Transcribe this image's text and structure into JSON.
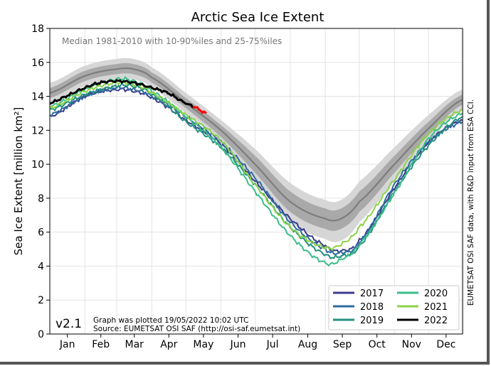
{
  "chart_data": {
    "type": "line",
    "title": "Arctic Sea Ice Extent",
    "ylabel": "Sea Ice Extent [million km²]",
    "xlabel": "",
    "ylim": [
      0,
      18
    ],
    "yticks": [
      0,
      2,
      4,
      6,
      8,
      10,
      12,
      14,
      16,
      18
    ],
    "months": [
      "Jan",
      "Feb",
      "Mar",
      "Apr",
      "May",
      "Jun",
      "Jul",
      "Aug",
      "Sep",
      "Oct",
      "Nov",
      "Dec"
    ],
    "grid": true,
    "legend_position": "bottom-right",
    "median_label": "Median 1981-2010 with 10-90%iles and 25-75%iles",
    "version": "v2.1",
    "plotted_note": "Graph was plotted 19/05/2022 10:02 UTC",
    "source_note": "Source: EUMETSAT OSI SAF (http://osi-saf.eumetsat.int)",
    "side_note": "EUMETSAT OSI SAF data, with R&D input from ESA CCI.",
    "median": {
      "days": [
        1,
        32,
        60,
        75,
        91,
        121,
        152,
        182,
        213,
        244,
        258,
        274,
        305,
        335,
        365
      ],
      "median": [
        14.2,
        15.2,
        15.6,
        15.6,
        15.1,
        13.6,
        12.0,
        10.0,
        7.8,
        6.8,
        6.8,
        7.8,
        10.0,
        12.1,
        13.8
      ],
      "p25": [
        13.9,
        14.9,
        15.3,
        15.3,
        14.8,
        13.3,
        11.6,
        9.5,
        7.2,
        6.2,
        6.2,
        7.2,
        9.5,
        11.7,
        13.5
      ],
      "p75": [
        14.5,
        15.5,
        15.9,
        15.9,
        15.4,
        13.9,
        12.3,
        10.5,
        8.4,
        7.4,
        7.4,
        8.4,
        10.5,
        12.5,
        14.1
      ],
      "p10": [
        13.6,
        14.6,
        15.0,
        15.0,
        14.5,
        13.0,
        11.3,
        9.0,
        6.6,
        5.6,
        5.5,
        6.6,
        9.0,
        11.3,
        13.2
      ],
      "p90": [
        14.8,
        15.8,
        16.2,
        16.2,
        15.7,
        14.2,
        12.6,
        10.9,
        8.9,
        7.9,
        7.9,
        9.0,
        11.0,
        12.9,
        14.4
      ]
    },
    "series": [
      {
        "name": "2017",
        "color": "#3b3b8e",
        "days": [
          1,
          32,
          60,
          75,
          91,
          121,
          152,
          182,
          213,
          244,
          258,
          274,
          305,
          335,
          365
        ],
        "values": [
          12.8,
          14.0,
          14.4,
          14.3,
          13.9,
          12.6,
          11.2,
          9.0,
          6.8,
          5.2,
          4.9,
          5.5,
          8.6,
          11.3,
          12.6
        ]
      },
      {
        "name": "2018",
        "color": "#2e6b9e",
        "days": [
          1,
          32,
          60,
          75,
          91,
          121,
          152,
          182,
          213,
          244,
          258,
          274,
          305,
          335,
          365
        ],
        "values": [
          12.9,
          14.0,
          14.5,
          14.4,
          14.0,
          12.8,
          11.3,
          9.2,
          6.6,
          5.0,
          4.8,
          5.4,
          8.8,
          11.3,
          12.5
        ]
      },
      {
        "name": "2019",
        "color": "#23907f",
        "days": [
          1,
          32,
          60,
          75,
          91,
          121,
          152,
          182,
          213,
          244,
          258,
          274,
          305,
          335,
          365
        ],
        "values": [
          13.2,
          14.1,
          14.6,
          14.6,
          14.1,
          12.5,
          11.0,
          8.8,
          6.3,
          4.7,
          4.6,
          5.2,
          8.4,
          11.1,
          12.8
        ]
      },
      {
        "name": "2020",
        "color": "#3bbd8a",
        "days": [
          1,
          32,
          60,
          75,
          91,
          121,
          152,
          182,
          213,
          244,
          258,
          274,
          305,
          335,
          365
        ],
        "values": [
          13.4,
          14.4,
          15.0,
          14.9,
          14.3,
          12.8,
          11.0,
          8.4,
          5.8,
          4.2,
          4.4,
          5.3,
          8.3,
          11.5,
          13.0
        ]
      },
      {
        "name": "2021",
        "color": "#8bd24a",
        "days": [
          1,
          32,
          60,
          75,
          91,
          121,
          152,
          182,
          213,
          244,
          258,
          274,
          305,
          335,
          365
        ],
        "values": [
          13.3,
          14.3,
          14.8,
          14.7,
          14.2,
          12.9,
          11.4,
          8.8,
          6.3,
          5.1,
          5.3,
          6.3,
          9.1,
          11.8,
          13.2
        ]
      },
      {
        "name": "2022",
        "color": "#000000",
        "days": [
          1,
          15,
          32,
          45,
          60,
          75,
          91,
          105,
          121,
          128,
          139
        ],
        "values": [
          13.6,
          14.0,
          14.5,
          14.8,
          14.9,
          14.8,
          14.5,
          14.2,
          13.6,
          13.4,
          13.0
        ]
      }
    ]
  }
}
